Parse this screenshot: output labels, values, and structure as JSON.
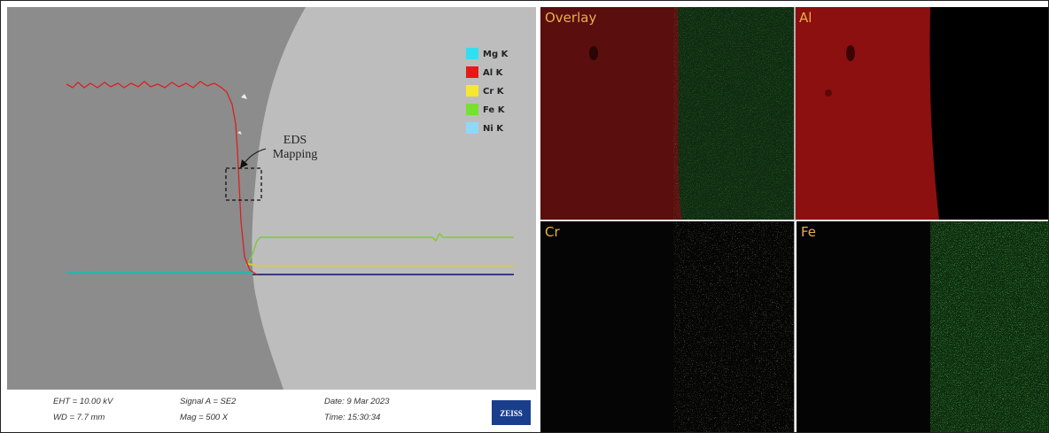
{
  "legend": [
    "Mg K",
    "Al K",
    "Cr K",
    "Fe K",
    "Ni K"
  ],
  "annotation": {
    "lines": [
      "EDS",
      "Mapping"
    ]
  },
  "info_bar": {
    "eht": "EHT = 10.00 kV",
    "wd": "WD =  7.7 mm",
    "signal": "Signal A = SE2",
    "mag": "Mag =    500 X",
    "date": "Date: 9 Mar 2023",
    "time": "Time: 15:30:34",
    "logo": "ZEISS"
  },
  "maps": [
    "Overlay",
    "Al",
    "Cr",
    "Fe"
  ]
}
